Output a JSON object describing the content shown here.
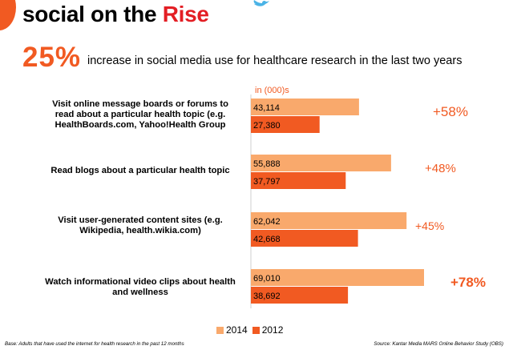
{
  "header": {
    "title_prefix": "social on the ",
    "title_emphasis": "Rise"
  },
  "stat": {
    "value": "25%",
    "text": "increase in social media use for healthcare research in the last two years"
  },
  "colors": {
    "accent": "#f15a22",
    "series_2014": "#f9a96c",
    "series_2012": "#f15a22",
    "title_emphasis": "#e31e24",
    "bird": "#4ab3e6"
  },
  "icons": [
    "bird-icon"
  ],
  "chart_data": {
    "type": "bar",
    "orientation": "horizontal",
    "unit_label": "in (000)s",
    "categories": [
      "Visit online message boards or forums to read about a particular health topic (e.g. HealthBoards.com, Yahoo!Health Group",
      "Read blogs about a particular health topic",
      "Visit user-generated content sites (e.g. Wikipedia, health.wikia.com)",
      "Watch informational video clips about health and wellness"
    ],
    "series": [
      {
        "name": "2014",
        "values": [
          43114,
          55888,
          62042,
          69010
        ],
        "labels": [
          "43,114",
          "55,888",
          "62,042",
          "69,010"
        ]
      },
      {
        "name": "2012",
        "values": [
          27380,
          37797,
          42668,
          38692
        ],
        "labels": [
          "27,380",
          "37,797",
          "42,668",
          "38,692"
        ]
      }
    ],
    "changes": [
      "+58%",
      "+48%",
      "+45%",
      "+78%"
    ],
    "xlim": [
      0,
      72000
    ],
    "legend_position": "bottom"
  },
  "footer": {
    "base": "Base: Adults that have used the internet for health research in the past 12 months",
    "source": "Source: Kantar Media MARS Online Behavior Study (OBS)"
  }
}
